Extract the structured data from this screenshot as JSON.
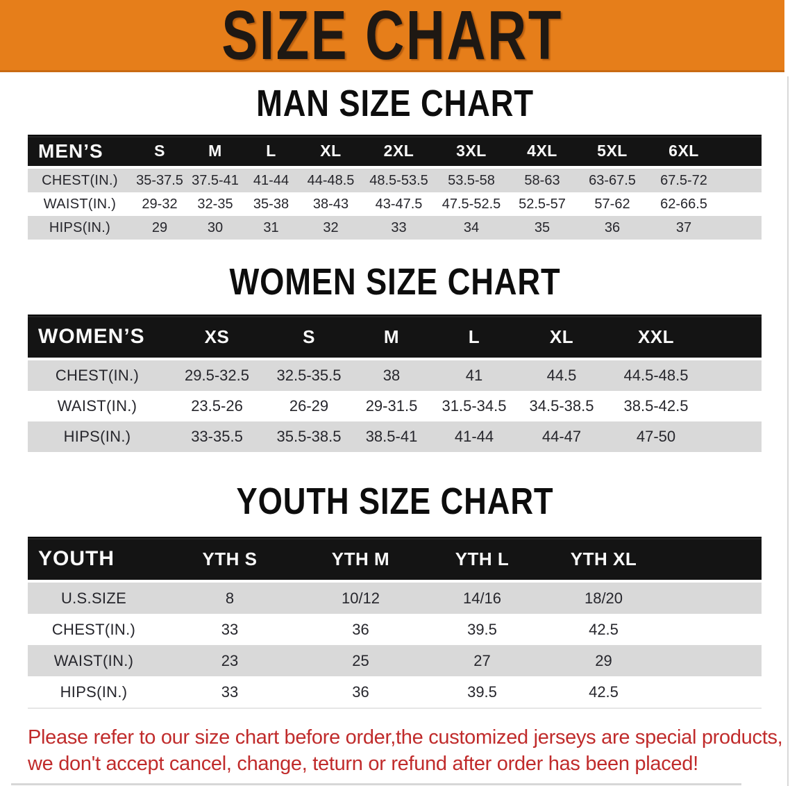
{
  "banner": {
    "title": "SIZE CHART"
  },
  "colors": {
    "banner_bg": "#E67E1A",
    "banner_text": "#1E1813",
    "table_header_bg": "#141414",
    "table_header_text": "#FAFAFA",
    "row_alt_bg": "#D9D9D9",
    "row_bg": "#FFFFFF",
    "body_text": "#26262C",
    "disclaimer_text": "#C02B2B"
  },
  "chart_data": [
    {
      "type": "table",
      "title": "MAN SIZE CHART",
      "group_label": "MEN’S",
      "columns": [
        "S",
        "M",
        "L",
        "XL",
        "2XL",
        "3XL",
        "4XL",
        "5XL",
        "6XL"
      ],
      "rows": [
        {
          "label": "CHEST(IN.)",
          "values": [
            "35-37.5",
            "37.5-41",
            "41-44",
            "44-48.5",
            "48.5-53.5",
            "53.5-58",
            "58-63",
            "63-67.5",
            "67.5-72"
          ]
        },
        {
          "label": "WAIST(IN.)",
          "values": [
            "29-32",
            "32-35",
            "35-38",
            "38-43",
            "43-47.5",
            "47.5-52.5",
            "52.5-57",
            "57-62",
            "62-66.5"
          ]
        },
        {
          "label": "HIPS(IN.)",
          "values": [
            "29",
            "30",
            "31",
            "32",
            "33",
            "34",
            "35",
            "36",
            "37"
          ]
        }
      ]
    },
    {
      "type": "table",
      "title": "WOMEN SIZE CHART",
      "group_label": "WOMEN’S",
      "columns": [
        "XS",
        "S",
        "M",
        "L",
        "XL",
        "XXL"
      ],
      "rows": [
        {
          "label": "CHEST(IN.)",
          "values": [
            "29.5-32.5",
            "32.5-35.5",
            "38",
            "41",
            "44.5",
            "44.5-48.5"
          ]
        },
        {
          "label": "WAIST(IN.)",
          "values": [
            "23.5-26",
            "26-29",
            "29-31.5",
            "31.5-34.5",
            "34.5-38.5",
            "38.5-42.5"
          ]
        },
        {
          "label": "HIPS(IN.)",
          "values": [
            "33-35.5",
            "35.5-38.5",
            "38.5-41",
            "41-44",
            "44-47",
            "47-50"
          ]
        }
      ]
    },
    {
      "type": "table",
      "title": "YOUTH SIZE CHART",
      "group_label": "YOUTH",
      "columns": [
        "YTH S",
        "YTH M",
        "YTH L",
        "YTH XL"
      ],
      "rows": [
        {
          "label": "U.S.SIZE",
          "values": [
            "8",
            "10/12",
            "14/16",
            "18/20"
          ]
        },
        {
          "label": "CHEST(IN.)",
          "values": [
            "33",
            "36",
            "39.5",
            "42.5"
          ]
        },
        {
          "label": "WAIST(IN.)",
          "values": [
            "23",
            "25",
            "27",
            "29"
          ]
        },
        {
          "label": "HIPS(IN.)",
          "values": [
            "33",
            "36",
            "39.5",
            "42.5"
          ]
        }
      ]
    }
  ],
  "disclaimer": {
    "line1": "Please refer to our size chart before order,the customized jerseys are special products,",
    "line2": "we don't accept cancel, change, teturn or refund after order has been placed!"
  }
}
